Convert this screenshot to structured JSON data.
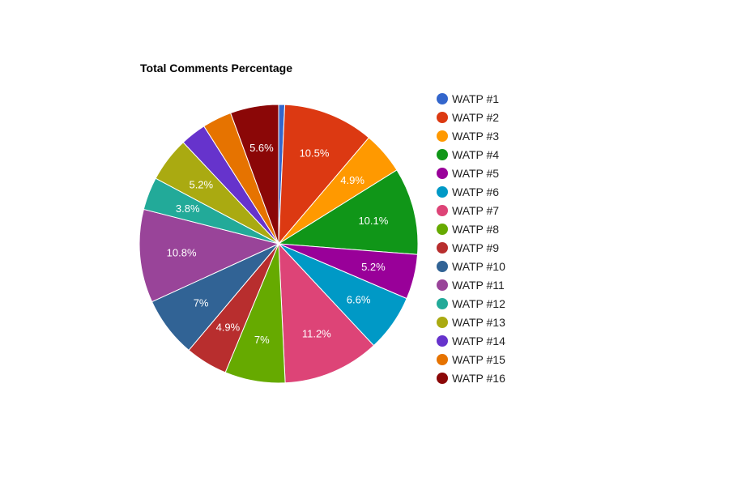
{
  "chart_data": {
    "type": "pie",
    "title": "Total Comments Percentage",
    "legend_position": "right",
    "slices": [
      {
        "name": "WATP #1",
        "value": 0.7,
        "label": "",
        "color": "#3366cc"
      },
      {
        "name": "WATP #2",
        "value": 10.5,
        "label": "10.5%",
        "color": "#dc3912"
      },
      {
        "name": "WATP #3",
        "value": 4.9,
        "label": "4.9%",
        "color": "#ff9900"
      },
      {
        "name": "WATP #4",
        "value": 10.1,
        "label": "10.1%",
        "color": "#109618"
      },
      {
        "name": "WATP #5",
        "value": 5.2,
        "label": "5.2%",
        "color": "#990099"
      },
      {
        "name": "WATP #6",
        "value": 6.6,
        "label": "6.6%",
        "color": "#0099c6"
      },
      {
        "name": "WATP #7",
        "value": 11.2,
        "label": "11.2%",
        "color": "#dd4477"
      },
      {
        "name": "WATP #8",
        "value": 7.0,
        "label": "7%",
        "color": "#66aa00"
      },
      {
        "name": "WATP #9",
        "value": 4.9,
        "label": "4.9%",
        "color": "#b82e2e"
      },
      {
        "name": "WATP #10",
        "value": 7.0,
        "label": "7%",
        "color": "#316395"
      },
      {
        "name": "WATP #11",
        "value": 10.8,
        "label": "10.8%",
        "color": "#994499"
      },
      {
        "name": "WATP #12",
        "value": 3.8,
        "label": "3.8%",
        "color": "#22aa99"
      },
      {
        "name": "WATP #13",
        "value": 5.2,
        "label": "5.2%",
        "color": "#aaaa11"
      },
      {
        "name": "WATP #14",
        "value": 3.0,
        "label": "",
        "color": "#6633cc"
      },
      {
        "name": "WATP #15",
        "value": 3.4,
        "label": "",
        "color": "#e67300"
      },
      {
        "name": "WATP #16",
        "value": 5.6,
        "label": "5.6%",
        "color": "#8b0707"
      }
    ]
  }
}
